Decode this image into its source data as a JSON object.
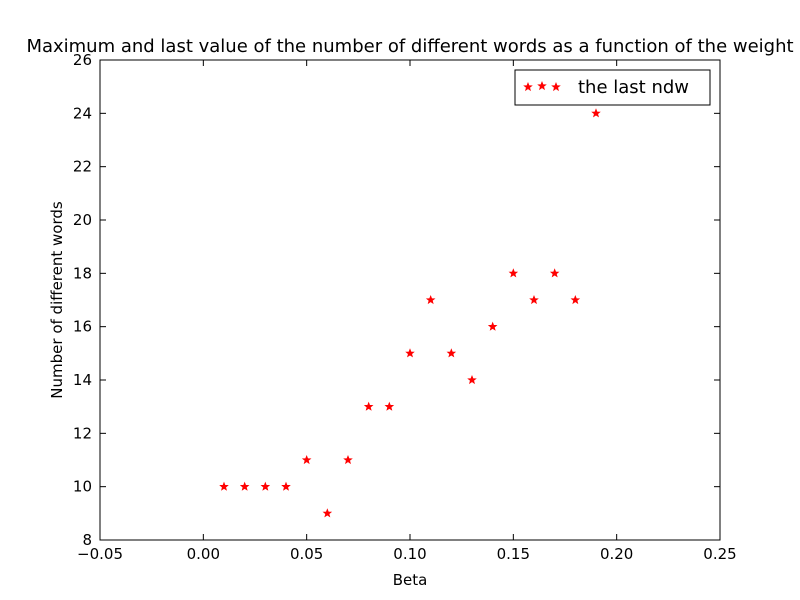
{
  "chart_data": {
    "type": "scatter",
    "title": "Maximum and last value of the number of different words as a function of the weight",
    "xlabel": "Beta",
    "ylabel": "Number of different words",
    "xlim": [
      -0.05,
      0.25
    ],
    "ylim": [
      8,
      26
    ],
    "xticks": [
      -0.05,
      0.0,
      0.05,
      0.1,
      0.15,
      0.2,
      0.25
    ],
    "xtick_labels": [
      "−0.05",
      "0.00",
      "0.05",
      "0.10",
      "0.15",
      "0.20",
      "0.25"
    ],
    "yticks": [
      8,
      10,
      12,
      14,
      16,
      18,
      20,
      22,
      24,
      26
    ],
    "ytick_labels": [
      "8",
      "10",
      "12",
      "14",
      "16",
      "18",
      "20",
      "22",
      "24",
      "26"
    ],
    "grid": false,
    "legend_position": "upper right",
    "marker": "star",
    "series": [
      {
        "name": "the last ndw",
        "color": "#ff0000",
        "x": [
          0.01,
          0.02,
          0.03,
          0.04,
          0.05,
          0.06,
          0.07,
          0.08,
          0.09,
          0.1,
          0.11,
          0.12,
          0.13,
          0.14,
          0.15,
          0.16,
          0.17,
          0.18,
          0.19
        ],
        "y": [
          10,
          10,
          10,
          10,
          11,
          9,
          11,
          13,
          13,
          15,
          17,
          15,
          14,
          16,
          18,
          17,
          18,
          17,
          24
        ]
      }
    ]
  }
}
